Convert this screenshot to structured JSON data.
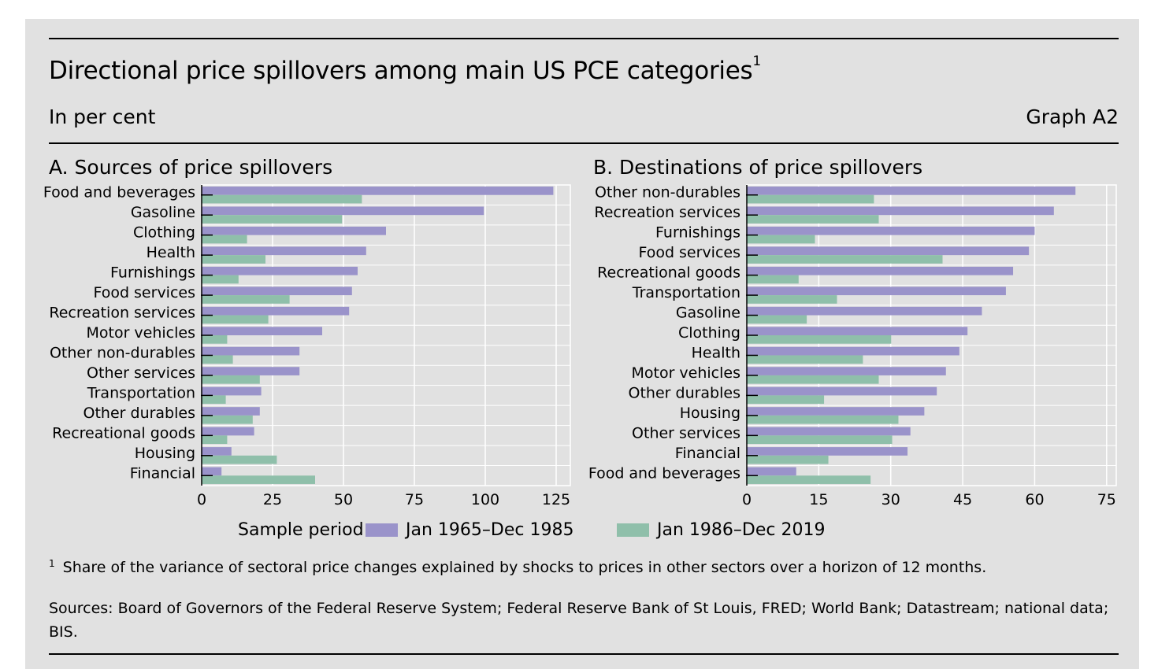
{
  "title": "Directional price spillovers among main US PCE categories",
  "title_footnote_mark": "1",
  "subtitle": "In per cent",
  "graph_id": "Graph A2",
  "colors": {
    "series1": "#9a93ca",
    "series2": "#8fbfaa",
    "background": "#e1e1e1"
  },
  "chart_data": [
    {
      "type": "bar",
      "orientation": "horizontal",
      "title": "A. Sources of price spillovers",
      "categories": [
        "Food and beverages",
        "Gasoline",
        "Clothing",
        "Health",
        "Furnishings",
        "Food services",
        "Recreation services",
        "Motor vehicles",
        "Other non-durables",
        "Other services",
        "Transportation",
        "Other durables",
        "Recreational goods",
        "Housing",
        "Financial"
      ],
      "series": [
        {
          "name": "Jan 1965–Dec 1985",
          "values": [
            124,
            99.5,
            65,
            58,
            55,
            53,
            52,
            42.5,
            34.5,
            34.5,
            21,
            20.5,
            18.5,
            10.5,
            7
          ]
        },
        {
          "name": "Jan 1986–Dec 2019",
          "values": [
            56.5,
            49.5,
            16,
            22.5,
            13,
            31,
            23.5,
            9,
            11,
            20.5,
            8.5,
            18,
            9,
            26.5,
            40
          ]
        }
      ],
      "xlim": [
        0,
        130
      ],
      "xticks": [
        "0",
        "25",
        "50",
        "75",
        "100",
        "125"
      ],
      "xtick_values": [
        0,
        25,
        50,
        75,
        100,
        125
      ]
    },
    {
      "type": "bar",
      "orientation": "horizontal",
      "title": "B. Destinations of price spillovers",
      "categories": [
        "Other non-durables",
        "Recreation services",
        "Furnishings",
        "Food services",
        "Recreational goods",
        "Transportation",
        "Gasoline",
        "Clothing",
        "Health",
        "Motor vehicles",
        "Other durables",
        "Housing",
        "Other services",
        "Financial",
        "Food and beverages"
      ],
      "series": [
        {
          "name": "Jan 1965–Dec 1985",
          "values": [
            68.5,
            64,
            60,
            58.8,
            55.5,
            54,
            49,
            46,
            44.3,
            41.5,
            39.6,
            37,
            34.1,
            33.5,
            10.3
          ]
        },
        {
          "name": "Jan 1986–Dec 2019",
          "values": [
            26.5,
            27.5,
            14.2,
            40.8,
            10.8,
            18.8,
            12.5,
            30.1,
            24.2,
            27.5,
            16.1,
            31.6,
            30.3,
            17,
            25.8
          ]
        }
      ],
      "xlim": [
        0,
        77
      ],
      "xticks": [
        "0",
        "15",
        "30",
        "45",
        "60",
        "75"
      ],
      "xtick_values": [
        0,
        15,
        30,
        45,
        60,
        75
      ]
    }
  ],
  "legend": {
    "prefix": "Sample period:",
    "items": [
      "Jan 1965–Dec 1985",
      "Jan 1986–Dec 2019"
    ]
  },
  "footnote": {
    "mark": "1",
    "text": "Share of the variance of sectoral price changes explained by shocks to prices in other sectors over a horizon of 12 months."
  },
  "sources": "Sources: Board of Governors of the Federal Reserve System; Federal Reserve Bank of St Louis, FRED; World Bank; Datastream; national data; BIS."
}
